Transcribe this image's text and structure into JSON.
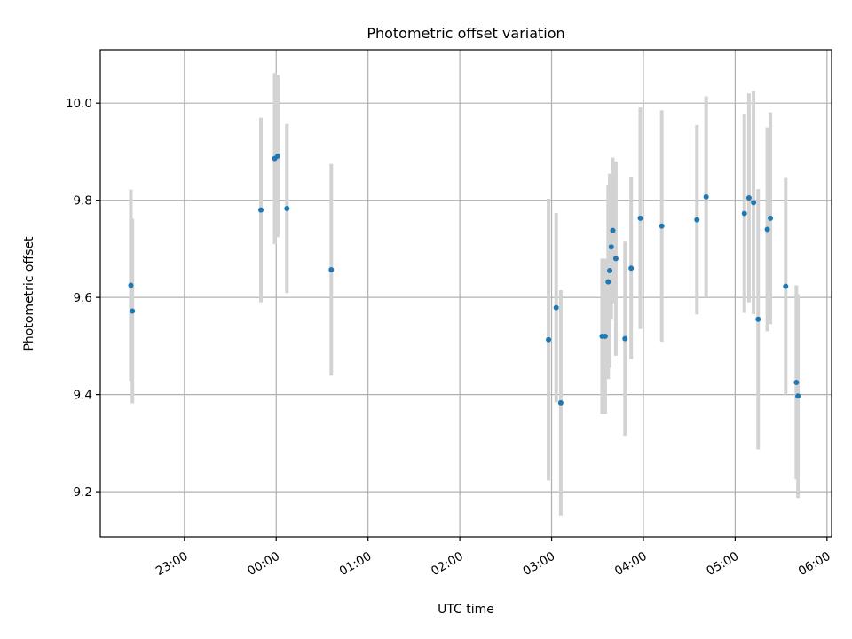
{
  "chart_data": {
    "type": "scatter",
    "title": "Photometric offset variation",
    "xlabel": "UTC time",
    "ylabel": "Photometric offset",
    "xlim": [
      "22:05",
      "06:03"
    ],
    "ylim": [
      9.107,
      10.11
    ],
    "x_ticks": [
      "23:00",
      "00:00",
      "01:00",
      "02:00",
      "03:00",
      "04:00",
      "05:00",
      "06:00"
    ],
    "y_ticks": [
      "9.2",
      "9.4",
      "9.6",
      "9.8",
      "10.0"
    ],
    "grid": true,
    "colors": {
      "point": "#1f77b4",
      "errorbar": "#d3d3d3",
      "grid": "#b0b0b0",
      "axes": "#000000"
    },
    "points": [
      {
        "t": "22:25",
        "y": 9.625,
        "err": 0.197
      },
      {
        "t": "22:26",
        "y": 9.572,
        "err": 0.19
      },
      {
        "t": "23:50",
        "y": 9.78,
        "err": 0.19
      },
      {
        "t": "23:59",
        "y": 9.886,
        "err": 0.176
      },
      {
        "t": "24:01",
        "y": 9.891,
        "err": 0.167
      },
      {
        "t": "24:07",
        "y": 9.783,
        "err": 0.174
      },
      {
        "t": "24:36",
        "y": 9.657,
        "err": 0.218
      },
      {
        "t": "26:58",
        "y": 9.513,
        "err": 0.29
      },
      {
        "t": "27:03",
        "y": 9.579,
        "err": 0.195
      },
      {
        "t": "27:06",
        "y": 9.383,
        "err": 0.232
      },
      {
        "t": "27:33",
        "y": 9.52,
        "err": 0.16
      },
      {
        "t": "27:35",
        "y": 9.52,
        "err": 0.16
      },
      {
        "t": "27:37",
        "y": 9.632,
        "err": 0.2
      },
      {
        "t": "27:38",
        "y": 9.655,
        "err": 0.2
      },
      {
        "t": "27:39",
        "y": 9.704,
        "err": 0.15
      },
      {
        "t": "27:40",
        "y": 9.738,
        "err": 0.15
      },
      {
        "t": "27:42",
        "y": 9.68,
        "err": 0.2
      },
      {
        "t": "27:48",
        "y": 9.515,
        "err": 0.2
      },
      {
        "t": "27:52",
        "y": 9.66,
        "err": 0.187
      },
      {
        "t": "27:58",
        "y": 9.763,
        "err": 0.228
      },
      {
        "t": "28:12",
        "y": 9.747,
        "err": 0.238
      },
      {
        "t": "28:35",
        "y": 9.76,
        "err": 0.195
      },
      {
        "t": "28:41",
        "y": 9.807,
        "err": 0.207
      },
      {
        "t": "29:06",
        "y": 9.773,
        "err": 0.205
      },
      {
        "t": "29:09",
        "y": 9.805,
        "err": 0.215
      },
      {
        "t": "29:12",
        "y": 9.795,
        "err": 0.23
      },
      {
        "t": "29:15",
        "y": 9.555,
        "err": 0.268
      },
      {
        "t": "29:21",
        "y": 9.74,
        "err": 0.21
      },
      {
        "t": "29:23",
        "y": 9.763,
        "err": 0.218
      },
      {
        "t": "29:33",
        "y": 9.623,
        "err": 0.223
      },
      {
        "t": "29:40",
        "y": 9.425,
        "err": 0.2
      },
      {
        "t": "29:41",
        "y": 9.397,
        "err": 0.21
      }
    ]
  }
}
